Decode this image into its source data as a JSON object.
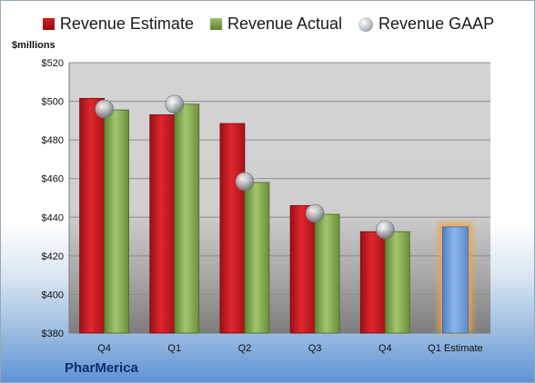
{
  "chart_data": {
    "type": "bar",
    "categories": [
      "Q4",
      "Q1",
      "Q2",
      "Q3",
      "Q4",
      "Q1 Estimate"
    ],
    "ylabel": "$millions",
    "ylim": [
      380,
      520
    ],
    "yticks": [
      380,
      400,
      420,
      440,
      460,
      480,
      500,
      520
    ],
    "ytick_prefix": "$",
    "series": [
      {
        "name": "Revenue Estimate",
        "type": "bar",
        "color": "#c8181f",
        "values": [
          501.5,
          493.0,
          488.5,
          446.0,
          432.5,
          null
        ]
      },
      {
        "name": "Revenue Actual",
        "type": "bar",
        "color": "#7fa64a",
        "values": [
          495.5,
          498.5,
          458.0,
          441.5,
          432.5,
          null
        ]
      },
      {
        "name": "Revenue GAAP",
        "type": "marker",
        "color": "#b9bec5",
        "values": [
          496.0,
          498.5,
          458.5,
          442.0,
          433.5,
          null
        ]
      }
    ],
    "forecast": {
      "category": "Q1 Estimate",
      "value": 435.0,
      "color": "#6f9fd8",
      "glow": "#f5a341"
    },
    "grid": true,
    "legend_position": "top"
  },
  "labels": {
    "unit": "$millions",
    "company": "PharMerica"
  }
}
